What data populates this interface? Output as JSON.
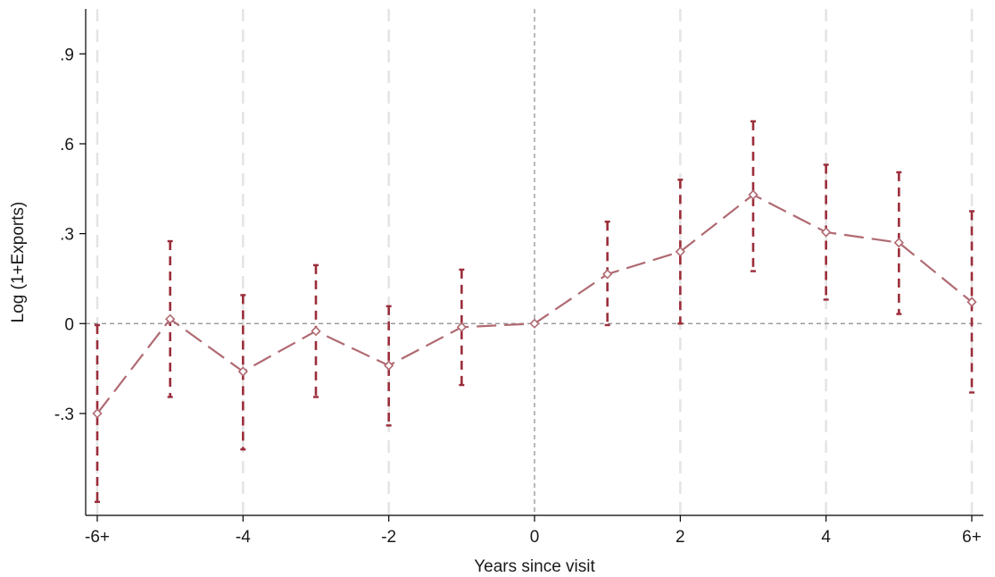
{
  "chart_data": {
    "type": "line",
    "title": "",
    "xlabel": "Years since visit",
    "ylabel": "Log (1+Exports)",
    "xlim": [
      -6,
      6
    ],
    "ylim": [
      -0.64,
      1.05
    ],
    "x_ticks": [
      {
        "value": -6,
        "label": "-6+"
      },
      {
        "value": -4,
        "label": "-4"
      },
      {
        "value": -2,
        "label": "-2"
      },
      {
        "value": 0,
        "label": "0"
      },
      {
        "value": 2,
        "label": "2"
      },
      {
        "value": 4,
        "label": "4"
      },
      {
        "value": 6,
        "label": "6+"
      }
    ],
    "y_ticks": [
      {
        "value": -0.3,
        "label": "-.3"
      },
      {
        "value": 0,
        "label": "0"
      },
      {
        "value": 0.3,
        "label": ".3"
      },
      {
        "value": 0.6,
        "label": ".6"
      },
      {
        "value": 0.9,
        "label": ".9"
      }
    ],
    "reference_lines": {
      "x": 0,
      "y": 0
    },
    "vertical_grid_at": [
      -6,
      -4,
      -2,
      2,
      4,
      6
    ],
    "series": [
      {
        "x": [
          -6,
          -5,
          -4,
          -3,
          -2,
          -1,
          0,
          1,
          2,
          3,
          4,
          5,
          6
        ],
        "values": [
          -0.3,
          0.015,
          -0.16,
          -0.025,
          -0.14,
          -0.012,
          0.0,
          0.165,
          0.24,
          0.43,
          0.305,
          0.27,
          0.072
        ],
        "ci_low": [
          -0.595,
          -0.245,
          -0.42,
          -0.245,
          -0.34,
          -0.205,
          null,
          -0.005,
          0.0,
          0.175,
          0.08,
          0.032,
          -0.23
        ],
        "ci_high": [
          -0.005,
          0.275,
          0.095,
          0.195,
          0.058,
          0.18,
          null,
          0.34,
          0.48,
          0.675,
          0.53,
          0.505,
          0.375
        ]
      }
    ],
    "colors": {
      "line": "#b06a72",
      "ci": "#9b2d3a",
      "reference": "#8a8a8a",
      "grid": "#e4e4e4",
      "axis": "#000000"
    },
    "grid": true,
    "legend": "none"
  }
}
